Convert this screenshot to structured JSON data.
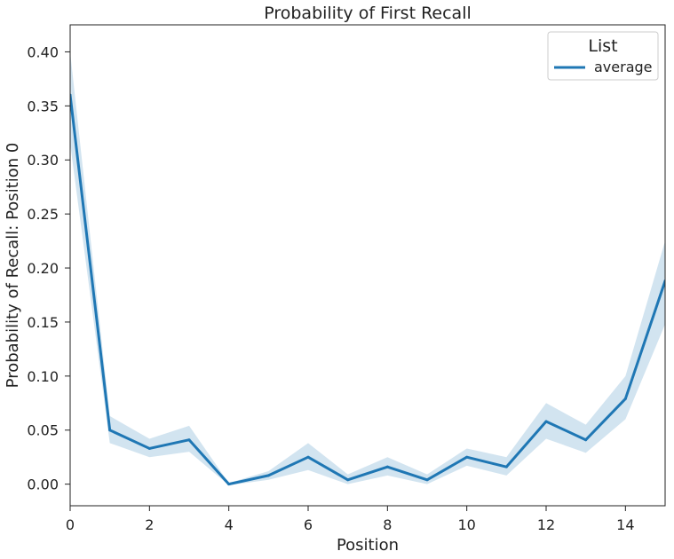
{
  "chart_data": {
    "type": "line",
    "title": "Probability of First Recall",
    "xlabel": "Position",
    "ylabel": "Probability of Recall: Position 0",
    "xlim": [
      0,
      15
    ],
    "ylim": [
      -0.02,
      0.425
    ],
    "xticks": [
      0,
      2,
      4,
      6,
      8,
      10,
      12,
      14
    ],
    "yticks": [
      0.0,
      0.05,
      0.1,
      0.15,
      0.2,
      0.25,
      0.3,
      0.35,
      0.4
    ],
    "ytick_labels": [
      "0.00",
      "0.05",
      "0.10",
      "0.15",
      "0.20",
      "0.25",
      "0.30",
      "0.35",
      "0.40"
    ],
    "grid": false,
    "legend": {
      "title": "List",
      "placement": "top-right"
    },
    "series": [
      {
        "name": "average",
        "color": "#1f77b4",
        "band_color": "#1f77b4",
        "x": [
          0,
          1,
          2,
          3,
          4,
          5,
          6,
          7,
          8,
          9,
          10,
          11,
          12,
          13,
          14,
          15
        ],
        "values": [
          0.36,
          0.05,
          0.033,
          0.041,
          0.0,
          0.008,
          0.025,
          0.004,
          0.016,
          0.004,
          0.025,
          0.016,
          0.058,
          0.041,
          0.079,
          0.188
        ],
        "ci_low": [
          0.315,
          0.038,
          0.025,
          0.03,
          -0.001,
          0.004,
          0.013,
          0.0,
          0.008,
          0.0,
          0.017,
          0.008,
          0.042,
          0.029,
          0.06,
          0.148
        ],
        "ci_high": [
          0.4,
          0.063,
          0.042,
          0.054,
          0.001,
          0.012,
          0.038,
          0.009,
          0.025,
          0.009,
          0.033,
          0.025,
          0.075,
          0.055,
          0.1,
          0.225
        ]
      }
    ]
  }
}
